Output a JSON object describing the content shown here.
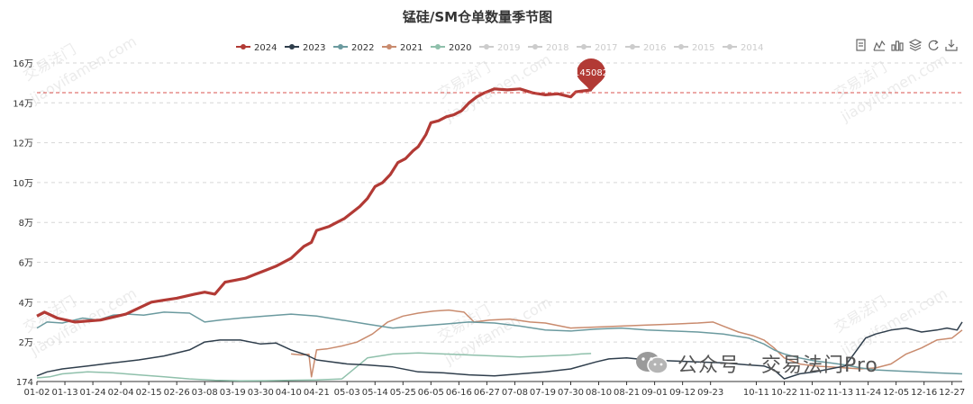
{
  "chart_data": {
    "type": "line",
    "title": "锰硅/SM仓单数量季节图",
    "xlabel": "",
    "ylabel": "",
    "y_ticks": [
      "174",
      "2万",
      "4万",
      "6万",
      "8万",
      "10万",
      "12万",
      "14万",
      "16万"
    ],
    "y_tick_values": [
      174,
      20000,
      40000,
      60000,
      80000,
      100000,
      120000,
      140000,
      160000
    ],
    "ylim": [
      174,
      160000
    ],
    "xlim_day": [
      0,
      364
    ],
    "x_ticks": [
      "01-02",
      "01-13",
      "01-24",
      "02-04",
      "02-15",
      "02-26",
      "03-08",
      "03-19",
      "03-30",
      "04-10",
      "04-21",
      "05-03",
      "05-14",
      "05-25",
      "06-05",
      "06-16",
      "06-27",
      "07-08",
      "07-19",
      "07-30",
      "08-10",
      "08-21",
      "09-01",
      "09-12",
      "09-23",
      "10-11",
      "10-22",
      "11-02",
      "11-13",
      "11-24",
      "12-05",
      "12-16",
      "12-27"
    ],
    "x_tick_days": [
      0,
      11,
      22,
      33,
      44,
      55,
      66,
      77,
      88,
      99,
      110,
      122,
      133,
      144,
      155,
      166,
      177,
      188,
      199,
      210,
      221,
      232,
      243,
      254,
      265,
      283,
      294,
      305,
      316,
      327,
      338,
      349,
      360
    ],
    "mark_line": {
      "value": 145082,
      "label": "145082"
    },
    "grid": true,
    "legend_position": "top-center",
    "series": [
      {
        "name": "2024",
        "color": "#b23a35",
        "active": true,
        "x": [
          0,
          3,
          8,
          15,
          25,
          35,
          45,
          50,
          55,
          62,
          66,
          70,
          74,
          78,
          82,
          86,
          90,
          94,
          100,
          105,
          108,
          110,
          115,
          118,
          121,
          124,
          127,
          130,
          133,
          136,
          139,
          142,
          145,
          148,
          150,
          153,
          155,
          158,
          161,
          164,
          167,
          170,
          173,
          176,
          180,
          185,
          190,
          195,
          200,
          205,
          210,
          212,
          215,
          218
        ],
        "y": [
          33000,
          35000,
          32000,
          30000,
          31000,
          34000,
          40000,
          41000,
          42000,
          44000,
          45000,
          44000,
          50000,
          51000,
          52000,
          54000,
          56000,
          58000,
          62000,
          68000,
          70000,
          76000,
          78000,
          80000,
          82000,
          85000,
          88000,
          92000,
          98000,
          100000,
          104000,
          110000,
          112000,
          116000,
          118000,
          124000,
          130000,
          131000,
          133000,
          134000,
          136000,
          140000,
          143000,
          145000,
          147000,
          146500,
          147000,
          145000,
          144000,
          144500,
          143000,
          145500,
          146000,
          146500
        ]
      },
      {
        "name": "2023",
        "color": "#2f3e4c",
        "active": true,
        "x": [
          0,
          4,
          10,
          20,
          30,
          40,
          50,
          60,
          66,
          72,
          80,
          88,
          94,
          100,
          106,
          110,
          116,
          122,
          130,
          140,
          150,
          160,
          170,
          180,
          190,
          200,
          210,
          220,
          225,
          232,
          240,
          250,
          260,
          270,
          280,
          286,
          290,
          294,
          300,
          306,
          312,
          318,
          322,
          326,
          330,
          336,
          342,
          348,
          354,
          358,
          362,
          364
        ],
        "y": [
          3000,
          5000,
          6500,
          8000,
          9500,
          11000,
          13000,
          16000,
          20000,
          21000,
          21000,
          19000,
          19500,
          16000,
          13500,
          11000,
          10000,
          9000,
          8500,
          7500,
          5000,
          4500,
          3500,
          3000,
          4000,
          5000,
          6500,
          10000,
          11500,
          12000,
          11000,
          10500,
          10000,
          9500,
          8500,
          8000,
          6000,
          1500,
          4000,
          5000,
          6500,
          8000,
          15000,
          22000,
          24000,
          26000,
          27000,
          25000,
          26000,
          27000,
          26000,
          30000
        ]
      },
      {
        "name": "2022",
        "color": "#6b9a9f",
        "active": true,
        "x": [
          0,
          4,
          10,
          18,
          24,
          30,
          36,
          42,
          50,
          60,
          66,
          72,
          80,
          90,
          100,
          110,
          120,
          130,
          140,
          150,
          160,
          170,
          180,
          190,
          200,
          210,
          220,
          230,
          240,
          250,
          260,
          270,
          280,
          286,
          290,
          294,
          300,
          306,
          312,
          318,
          324,
          330,
          338,
          346,
          354,
          364
        ],
        "y": [
          27000,
          30000,
          29500,
          32000,
          31000,
          33500,
          34000,
          33500,
          35000,
          34500,
          30000,
          31000,
          32000,
          33000,
          34000,
          33000,
          31000,
          29000,
          27000,
          28000,
          29000,
          30000,
          29500,
          28000,
          26000,
          25500,
          26500,
          27000,
          26000,
          25500,
          25000,
          24000,
          22000,
          19000,
          16000,
          14000,
          12000,
          10500,
          9500,
          8500,
          7000,
          6000,
          5500,
          5000,
          4500,
          4000
        ]
      },
      {
        "name": "2021",
        "color": "#c98b6e",
        "active": true,
        "x": [
          100,
          104,
          107,
          108,
          110,
          114,
          120,
          126,
          132,
          138,
          144,
          150,
          156,
          162,
          168,
          172,
          178,
          186,
          194,
          200,
          210,
          220,
          230,
          240,
          250,
          260,
          266,
          270,
          276,
          282,
          286,
          290,
          294,
          300,
          306,
          312,
          318,
          324,
          330,
          336,
          342,
          348,
          354,
          360,
          364
        ],
        "y": [
          14000,
          13500,
          13800,
          2500,
          16000,
          16500,
          18000,
          20000,
          24000,
          30000,
          33000,
          34500,
          35500,
          36000,
          35000,
          30000,
          31000,
          31500,
          30000,
          29500,
          27000,
          27500,
          28000,
          28500,
          29000,
          29500,
          30000,
          28000,
          25000,
          23000,
          21000,
          17000,
          12000,
          9000,
          8000,
          7500,
          7000,
          6500,
          7000,
          9000,
          14000,
          17000,
          21000,
          22000,
          26000
        ]
      },
      {
        "name": "2020",
        "color": "#8fc0ab",
        "active": true,
        "x": [
          0,
          5,
          10,
          20,
          30,
          40,
          50,
          60,
          70,
          80,
          90,
          100,
          110,
          120,
          130,
          140,
          150,
          160,
          170,
          180,
          190,
          200,
          210,
          214,
          218
        ],
        "y": [
          2000,
          2500,
          4000,
          5000,
          4500,
          3500,
          2500,
          1500,
          800,
          500,
          600,
          800,
          1000,
          1500,
          12000,
          14000,
          14500,
          14000,
          13500,
          13000,
          12500,
          13000,
          13500,
          14000,
          14200
        ]
      },
      {
        "name": "2019",
        "color": "#c8c8c8",
        "active": false,
        "x": [],
        "y": []
      },
      {
        "name": "2018",
        "color": "#c8c8c8",
        "active": false,
        "x": [],
        "y": []
      },
      {
        "name": "2017",
        "color": "#c8c8c8",
        "active": false,
        "x": [],
        "y": []
      },
      {
        "name": "2016",
        "color": "#c8c8c8",
        "active": false,
        "x": [],
        "y": []
      },
      {
        "name": "2015",
        "color": "#c8c8c8",
        "active": false,
        "x": [],
        "y": []
      },
      {
        "name": "2014",
        "color": "#c8c8c8",
        "active": false,
        "x": [],
        "y": []
      }
    ]
  },
  "watermark": {
    "text_cn": "交易法门",
    "text_en": "jiaoyifamen.com",
    "wechat_label": "公众号 · 交易法门Pro"
  },
  "toolbox": [
    "data-view-icon",
    "line-chart-icon",
    "bar-chart-icon",
    "stack-icon",
    "restore-icon",
    "save-image-icon"
  ]
}
